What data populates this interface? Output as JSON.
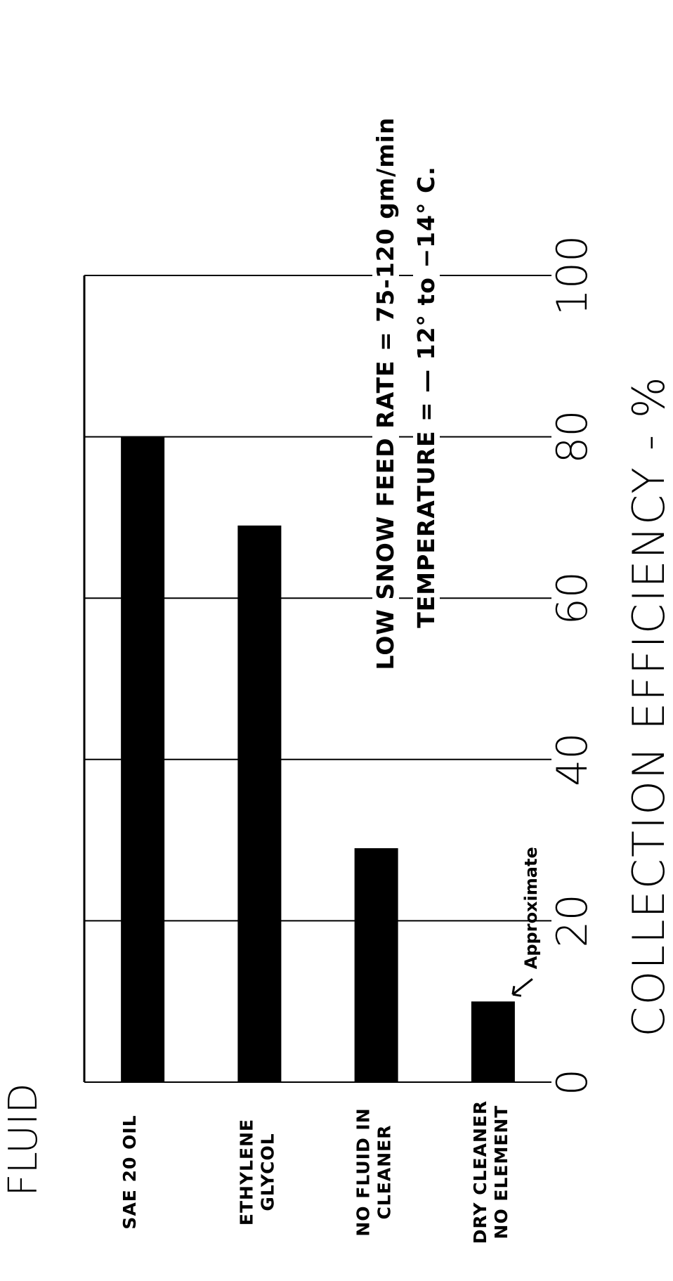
{
  "chart_data": {
    "type": "bar",
    "orientation": "horizontal-bars-rotated-page",
    "legend_title": "FLUID",
    "categories": [
      [
        "SAE  20 OIL"
      ],
      [
        "ETHYLENE",
        "GLYCOL"
      ],
      [
        "NO FLUID IN",
        "CLEANER"
      ],
      [
        "DRY CLEANER",
        "NO ELEMENT"
      ]
    ],
    "values": [
      80,
      69,
      29,
      10
    ],
    "ylabel": "COLLECTION   EFFICIENCY - %",
    "ylim": [
      0,
      100
    ],
    "yticks": [
      0,
      20,
      40,
      60,
      80,
      100
    ],
    "grid": true,
    "notes": [
      "LOW SNOW FEED  RATE = 75-120 gm/min",
      "TEMPERATURE = — 12° to −14° C."
    ],
    "annotation": {
      "text": "Approximate",
      "category_index": 3
    }
  }
}
